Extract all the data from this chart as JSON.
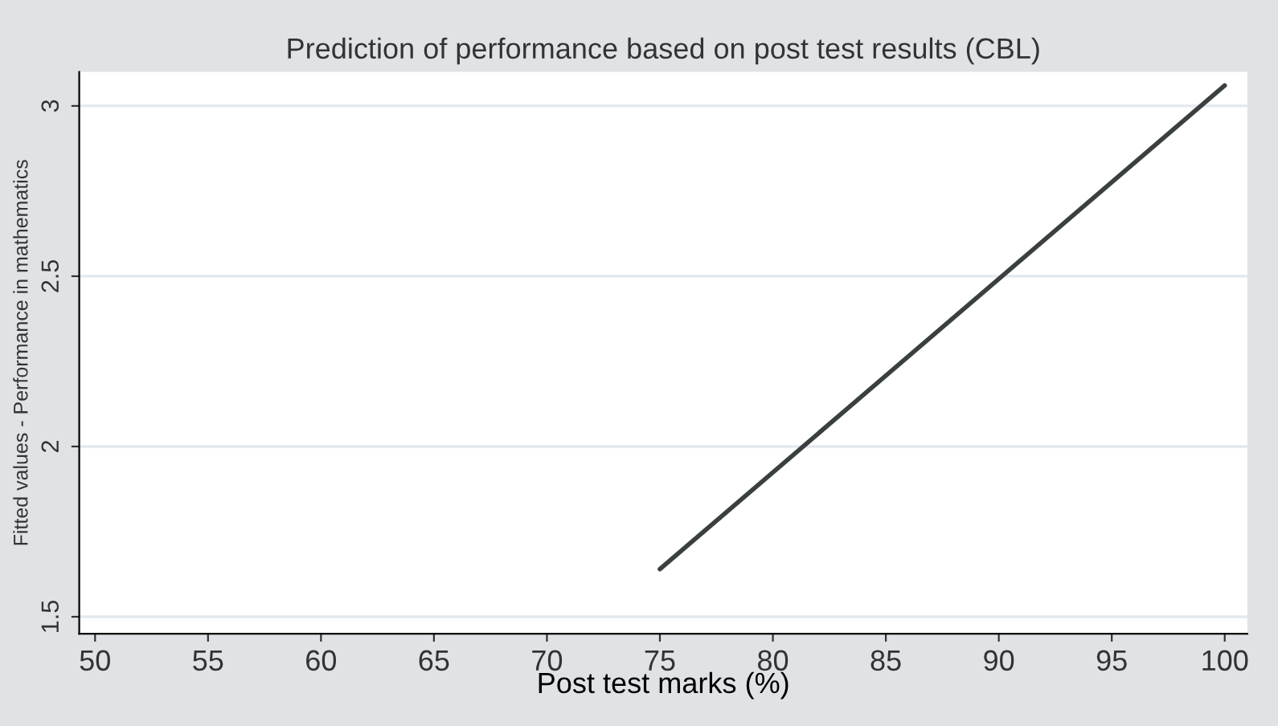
{
  "chart_data": {
    "type": "line",
    "title": "Prediction of performance based on post test results (CBL)",
    "xlabel": "Post test marks (%)",
    "ylabel": "Fitted values - Performance in mathematics",
    "series": [
      {
        "x": [
          75,
          100
        ],
        "values": [
          1.64,
          3.06
        ],
        "color": "#3a3f3f"
      }
    ],
    "xlim": [
      49.3,
      101
    ],
    "xticks": [
      50,
      55,
      60,
      65,
      70,
      75,
      80,
      85,
      90,
      95,
      100
    ],
    "ylim": [
      1.45,
      3.1
    ],
    "yticks": [
      1.5,
      2,
      2.5,
      3
    ],
    "grid": "y",
    "legend": false
  }
}
